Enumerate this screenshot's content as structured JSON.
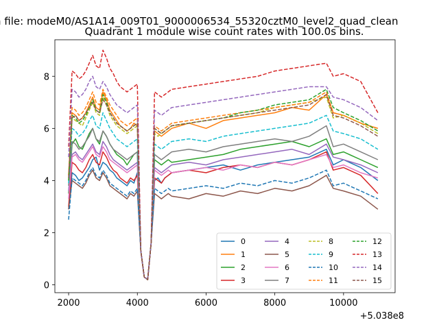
{
  "figure": {
    "suptitle": "n file: modeM0/AS1A14_009T01_9000006534_55320cztM0_level2_quad_clean",
    "title": "Quadrant 1 module wise count rates with 100.0s bins.",
    "x_offset_label": "+5.038e8"
  },
  "chart_data": {
    "type": "line",
    "title": "Quadrant 1 module wise count rates with 100.0s bins.",
    "xlabel": "",
    "ylabel": "",
    "x_offset": 503800000,
    "xlim": [
      1600,
      11500
    ],
    "ylim": [
      -0.3,
      9.4
    ],
    "x_ticks": [
      2000,
      4000,
      6000,
      8000,
      10000
    ],
    "x_tick_labels": [
      "2000",
      "4000",
      "6000",
      "8000",
      "10000"
    ],
    "y_ticks": [
      0,
      2,
      4,
      6,
      8
    ],
    "y_tick_labels": [
      "0",
      "2",
      "4",
      "6",
      "8"
    ],
    "grid": false,
    "legend_position": "lower-right",
    "legend_columns": 4,
    "x": [
      2000,
      2100,
      2200,
      2300,
      2400,
      2500,
      2600,
      2700,
      2800,
      2900,
      3000,
      3100,
      3200,
      3300,
      3400,
      3500,
      3600,
      3700,
      3800,
      3900,
      4000,
      4100,
      4200,
      4300,
      4400,
      4500,
      4600,
      4700,
      4800,
      4900,
      5000,
      5500,
      6000,
      6500,
      7000,
      7500,
      8000,
      8500,
      9000,
      9500,
      9700,
      10000,
      10500,
      11000
    ],
    "series": [
      {
        "name": "0",
        "color": "#1f77b4",
        "dash": "solid",
        "values": [
          2.9,
          4.3,
          4.2,
          4.0,
          4.1,
          4.3,
          4.5,
          4.8,
          4.9,
          4.4,
          4.7,
          4.6,
          4.4,
          4.3,
          4.1,
          4.0,
          3.9,
          3.8,
          4.0,
          3.9,
          4.3,
          1.3,
          0.3,
          0.2,
          1.6,
          4.0,
          4.1,
          3.9,
          4.1,
          4.2,
          4.3,
          4.4,
          4.5,
          4.6,
          4.4,
          4.6,
          4.7,
          4.8,
          4.9,
          5.2,
          4.6,
          4.8,
          4.5,
          4.0
        ]
      },
      {
        "name": "1",
        "color": "#ff7f0e",
        "dash": "solid",
        "values": [
          4.2,
          6.6,
          6.5,
          6.3,
          6.4,
          6.6,
          6.9,
          7.2,
          6.8,
          6.7,
          7.4,
          7.1,
          6.7,
          6.5,
          6.3,
          6.1,
          6.0,
          5.9,
          6.0,
          6.2,
          6.1,
          1.3,
          0.3,
          0.2,
          1.6,
          5.9,
          5.8,
          5.7,
          5.8,
          5.9,
          6.0,
          6.2,
          6.0,
          6.3,
          6.4,
          6.5,
          6.6,
          6.8,
          6.7,
          7.3,
          6.6,
          6.5,
          6.2,
          6.0
        ]
      },
      {
        "name": "2",
        "color": "#2ca02c",
        "dash": "solid",
        "values": [
          3.5,
          5.4,
          5.6,
          5.3,
          5.2,
          5.5,
          5.8,
          6.0,
          5.6,
          5.4,
          5.9,
          5.7,
          5.4,
          5.2,
          5.0,
          4.9,
          4.8,
          4.6,
          4.8,
          5.0,
          5.1,
          1.3,
          0.3,
          0.2,
          1.6,
          4.8,
          4.7,
          4.6,
          4.7,
          4.8,
          4.7,
          4.8,
          4.9,
          5.0,
          5.2,
          5.3,
          5.4,
          5.5,
          5.3,
          5.6,
          5.0,
          5.1,
          4.8,
          4.5
        ]
      },
      {
        "name": "3",
        "color": "#d62728",
        "dash": "solid",
        "values": [
          3.0,
          4.7,
          4.6,
          4.4,
          4.3,
          4.5,
          4.8,
          5.0,
          4.7,
          4.6,
          5.1,
          4.9,
          4.6,
          4.4,
          4.3,
          4.1,
          4.0,
          3.9,
          4.1,
          4.0,
          4.2,
          1.3,
          0.3,
          0.2,
          1.6,
          4.1,
          4.0,
          3.9,
          4.1,
          4.2,
          4.3,
          4.4,
          4.3,
          4.5,
          4.6,
          4.5,
          4.7,
          4.6,
          4.8,
          5.1,
          4.4,
          4.5,
          4.2,
          3.5
        ]
      },
      {
        "name": "4",
        "color": "#9467bd",
        "dash": "solid",
        "values": [
          3.6,
          5.0,
          5.1,
          4.9,
          4.8,
          5.0,
          5.2,
          5.4,
          5.1,
          5.0,
          5.5,
          5.3,
          5.0,
          4.8,
          4.7,
          4.6,
          4.5,
          4.4,
          4.5,
          4.6,
          4.7,
          1.3,
          0.3,
          0.2,
          1.6,
          4.5,
          4.4,
          4.3,
          4.4,
          4.5,
          4.6,
          4.7,
          4.6,
          4.8,
          4.9,
          5.0,
          5.1,
          5.2,
          5.0,
          5.4,
          4.9,
          4.8,
          4.6,
          4.3
        ]
      },
      {
        "name": "5",
        "color": "#8c564b",
        "dash": "solid",
        "values": [
          2.9,
          4.0,
          3.9,
          3.8,
          3.7,
          3.9,
          4.2,
          4.4,
          4.1,
          4.0,
          4.3,
          4.1,
          3.8,
          3.7,
          3.6,
          3.5,
          3.4,
          3.3,
          3.5,
          3.4,
          3.6,
          1.3,
          0.3,
          0.2,
          1.6,
          3.5,
          3.4,
          3.3,
          3.4,
          3.5,
          3.4,
          3.3,
          3.5,
          3.4,
          3.6,
          3.5,
          3.7,
          3.6,
          3.8,
          4.2,
          3.7,
          3.6,
          3.4,
          2.9
        ]
      },
      {
        "name": "6",
        "color": "#e377c2",
        "dash": "solid",
        "values": [
          3.3,
          4.9,
          5.0,
          4.8,
          4.7,
          4.9,
          5.1,
          5.3,
          5.0,
          4.9,
          5.3,
          5.1,
          4.8,
          4.7,
          4.6,
          4.5,
          4.4,
          4.3,
          4.4,
          4.5,
          4.6,
          1.3,
          0.3,
          0.2,
          1.6,
          4.4,
          4.3,
          4.2,
          4.3,
          4.4,
          4.3,
          4.4,
          4.5,
          4.4,
          4.6,
          4.5,
          4.7,
          4.6,
          4.8,
          5.0,
          4.5,
          4.6,
          4.3,
          4.1
        ]
      },
      {
        "name": "7",
        "color": "#7f7f7f",
        "dash": "solid",
        "values": [
          3.8,
          5.5,
          5.4,
          5.2,
          5.3,
          5.5,
          5.7,
          6.0,
          5.6,
          5.5,
          5.9,
          5.7,
          5.4,
          5.2,
          5.1,
          5.0,
          4.9,
          4.8,
          4.9,
          5.0,
          5.1,
          1.3,
          0.3,
          0.2,
          1.6,
          5.0,
          4.9,
          4.8,
          4.9,
          5.0,
          5.1,
          5.2,
          5.1,
          5.3,
          5.4,
          5.5,
          5.6,
          5.5,
          5.7,
          6.1,
          5.3,
          5.4,
          5.1,
          4.8
        ]
      },
      {
        "name": "8",
        "color": "#bcbd22",
        "dash": "dashed",
        "values": [
          4.0,
          6.4,
          6.3,
          6.2,
          6.1,
          6.4,
          6.7,
          7.0,
          6.6,
          6.5,
          7.2,
          6.9,
          6.5,
          6.3,
          6.1,
          6.0,
          5.9,
          5.8,
          5.9,
          6.0,
          6.1,
          1.3,
          0.3,
          0.2,
          1.6,
          5.8,
          5.7,
          5.8,
          5.9,
          6.0,
          6.1,
          6.2,
          6.3,
          6.4,
          6.5,
          6.6,
          6.8,
          6.9,
          7.0,
          7.2,
          6.4,
          6.5,
          6.2,
          5.8
        ]
      },
      {
        "name": "9",
        "color": "#17becf",
        "dash": "dashed",
        "values": [
          3.9,
          6.0,
          5.9,
          5.7,
          5.8,
          6.0,
          6.3,
          6.5,
          6.1,
          6.0,
          6.6,
          6.3,
          6.0,
          5.8,
          5.6,
          5.5,
          5.4,
          5.3,
          5.4,
          5.5,
          5.6,
          1.3,
          0.3,
          0.2,
          1.6,
          5.4,
          5.3,
          5.2,
          5.3,
          5.4,
          5.5,
          5.6,
          5.5,
          5.7,
          5.8,
          5.9,
          6.0,
          6.1,
          6.2,
          6.5,
          5.9,
          5.8,
          5.6,
          5.2
        ]
      },
      {
        "name": "10",
        "color": "#1f77b4",
        "dash": "dashed",
        "values": [
          2.5,
          4.1,
          4.0,
          3.9,
          3.8,
          4.0,
          4.3,
          4.5,
          4.2,
          4.1,
          4.4,
          4.2,
          3.9,
          3.8,
          3.7,
          3.6,
          3.5,
          3.4,
          3.6,
          3.5,
          3.7,
          1.3,
          0.3,
          0.2,
          1.6,
          3.7,
          3.6,
          3.5,
          3.6,
          3.7,
          3.6,
          3.7,
          3.8,
          3.7,
          3.9,
          3.8,
          4.0,
          3.9,
          4.1,
          4.4,
          3.8,
          3.9,
          3.6,
          3.3
        ]
      },
      {
        "name": "11",
        "color": "#ff7f0e",
        "dash": "dashed",
        "values": [
          4.2,
          6.8,
          6.7,
          6.5,
          6.6,
          6.8,
          7.1,
          7.4,
          7.0,
          6.9,
          7.5,
          7.2,
          6.9,
          6.7,
          6.5,
          6.3,
          6.2,
          6.1,
          6.2,
          6.3,
          6.4,
          1.3,
          0.3,
          0.2,
          1.6,
          6.1,
          6.0,
          5.9,
          6.0,
          6.1,
          6.2,
          6.3,
          6.4,
          6.5,
          6.6,
          6.7,
          6.8,
          6.9,
          7.0,
          7.4,
          6.6,
          6.5,
          6.2,
          6.0
        ]
      },
      {
        "name": "12",
        "color": "#2ca02c",
        "dash": "dashed",
        "values": [
          4.0,
          6.5,
          6.4,
          6.2,
          6.3,
          6.5,
          6.8,
          7.1,
          6.7,
          6.6,
          7.3,
          7.0,
          6.6,
          6.4,
          6.2,
          6.1,
          6.0,
          5.9,
          6.0,
          6.1,
          6.2,
          1.3,
          0.3,
          0.2,
          1.6,
          6.0,
          5.9,
          5.8,
          5.9,
          6.0,
          6.1,
          6.2,
          6.3,
          6.4,
          6.6,
          6.7,
          6.9,
          7.0,
          7.1,
          7.5,
          6.8,
          6.6,
          6.3,
          5.9
        ]
      },
      {
        "name": "13",
        "color": "#d62728",
        "dash": "dashed",
        "values": [
          5.3,
          8.2,
          8.1,
          7.9,
          8.0,
          8.2,
          8.5,
          8.8,
          8.4,
          8.3,
          9.0,
          8.7,
          8.3,
          8.1,
          7.8,
          7.6,
          7.5,
          7.4,
          7.5,
          7.6,
          7.7,
          1.3,
          0.3,
          0.2,
          1.6,
          7.4,
          7.3,
          7.2,
          7.3,
          7.4,
          7.5,
          7.6,
          7.7,
          7.8,
          7.9,
          8.0,
          8.2,
          8.3,
          8.4,
          8.5,
          8.0,
          8.1,
          7.8,
          6.6
        ]
      },
      {
        "name": "14",
        "color": "#9467bd",
        "dash": "dashed",
        "values": [
          4.9,
          7.5,
          7.4,
          7.2,
          7.3,
          7.5,
          7.8,
          8.0,
          7.6,
          7.5,
          7.8,
          7.6,
          7.3,
          7.1,
          6.9,
          6.8,
          6.7,
          6.6,
          6.7,
          6.8,
          6.9,
          1.3,
          0.3,
          0.2,
          1.6,
          6.7,
          6.6,
          6.5,
          6.6,
          6.7,
          6.8,
          6.9,
          7.0,
          7.1,
          7.2,
          7.3,
          7.4,
          7.5,
          7.6,
          7.6,
          7.2,
          7.1,
          6.8,
          6.3
        ]
      },
      {
        "name": "15",
        "color": "#8c564b",
        "dash": "dashed",
        "values": [
          4.1,
          6.4,
          6.5,
          6.3,
          6.4,
          6.6,
          6.8,
          7.0,
          6.7,
          6.6,
          7.1,
          6.9,
          6.6,
          6.4,
          6.2,
          6.1,
          6.0,
          5.9,
          6.0,
          6.1,
          6.2,
          1.3,
          0.3,
          0.2,
          1.6,
          6.0,
          5.9,
          5.8,
          5.9,
          6.0,
          6.1,
          6.2,
          6.3,
          6.4,
          6.5,
          6.6,
          6.7,
          6.8,
          6.9,
          7.3,
          6.5,
          6.4,
          6.1,
          5.7
        ]
      }
    ]
  }
}
